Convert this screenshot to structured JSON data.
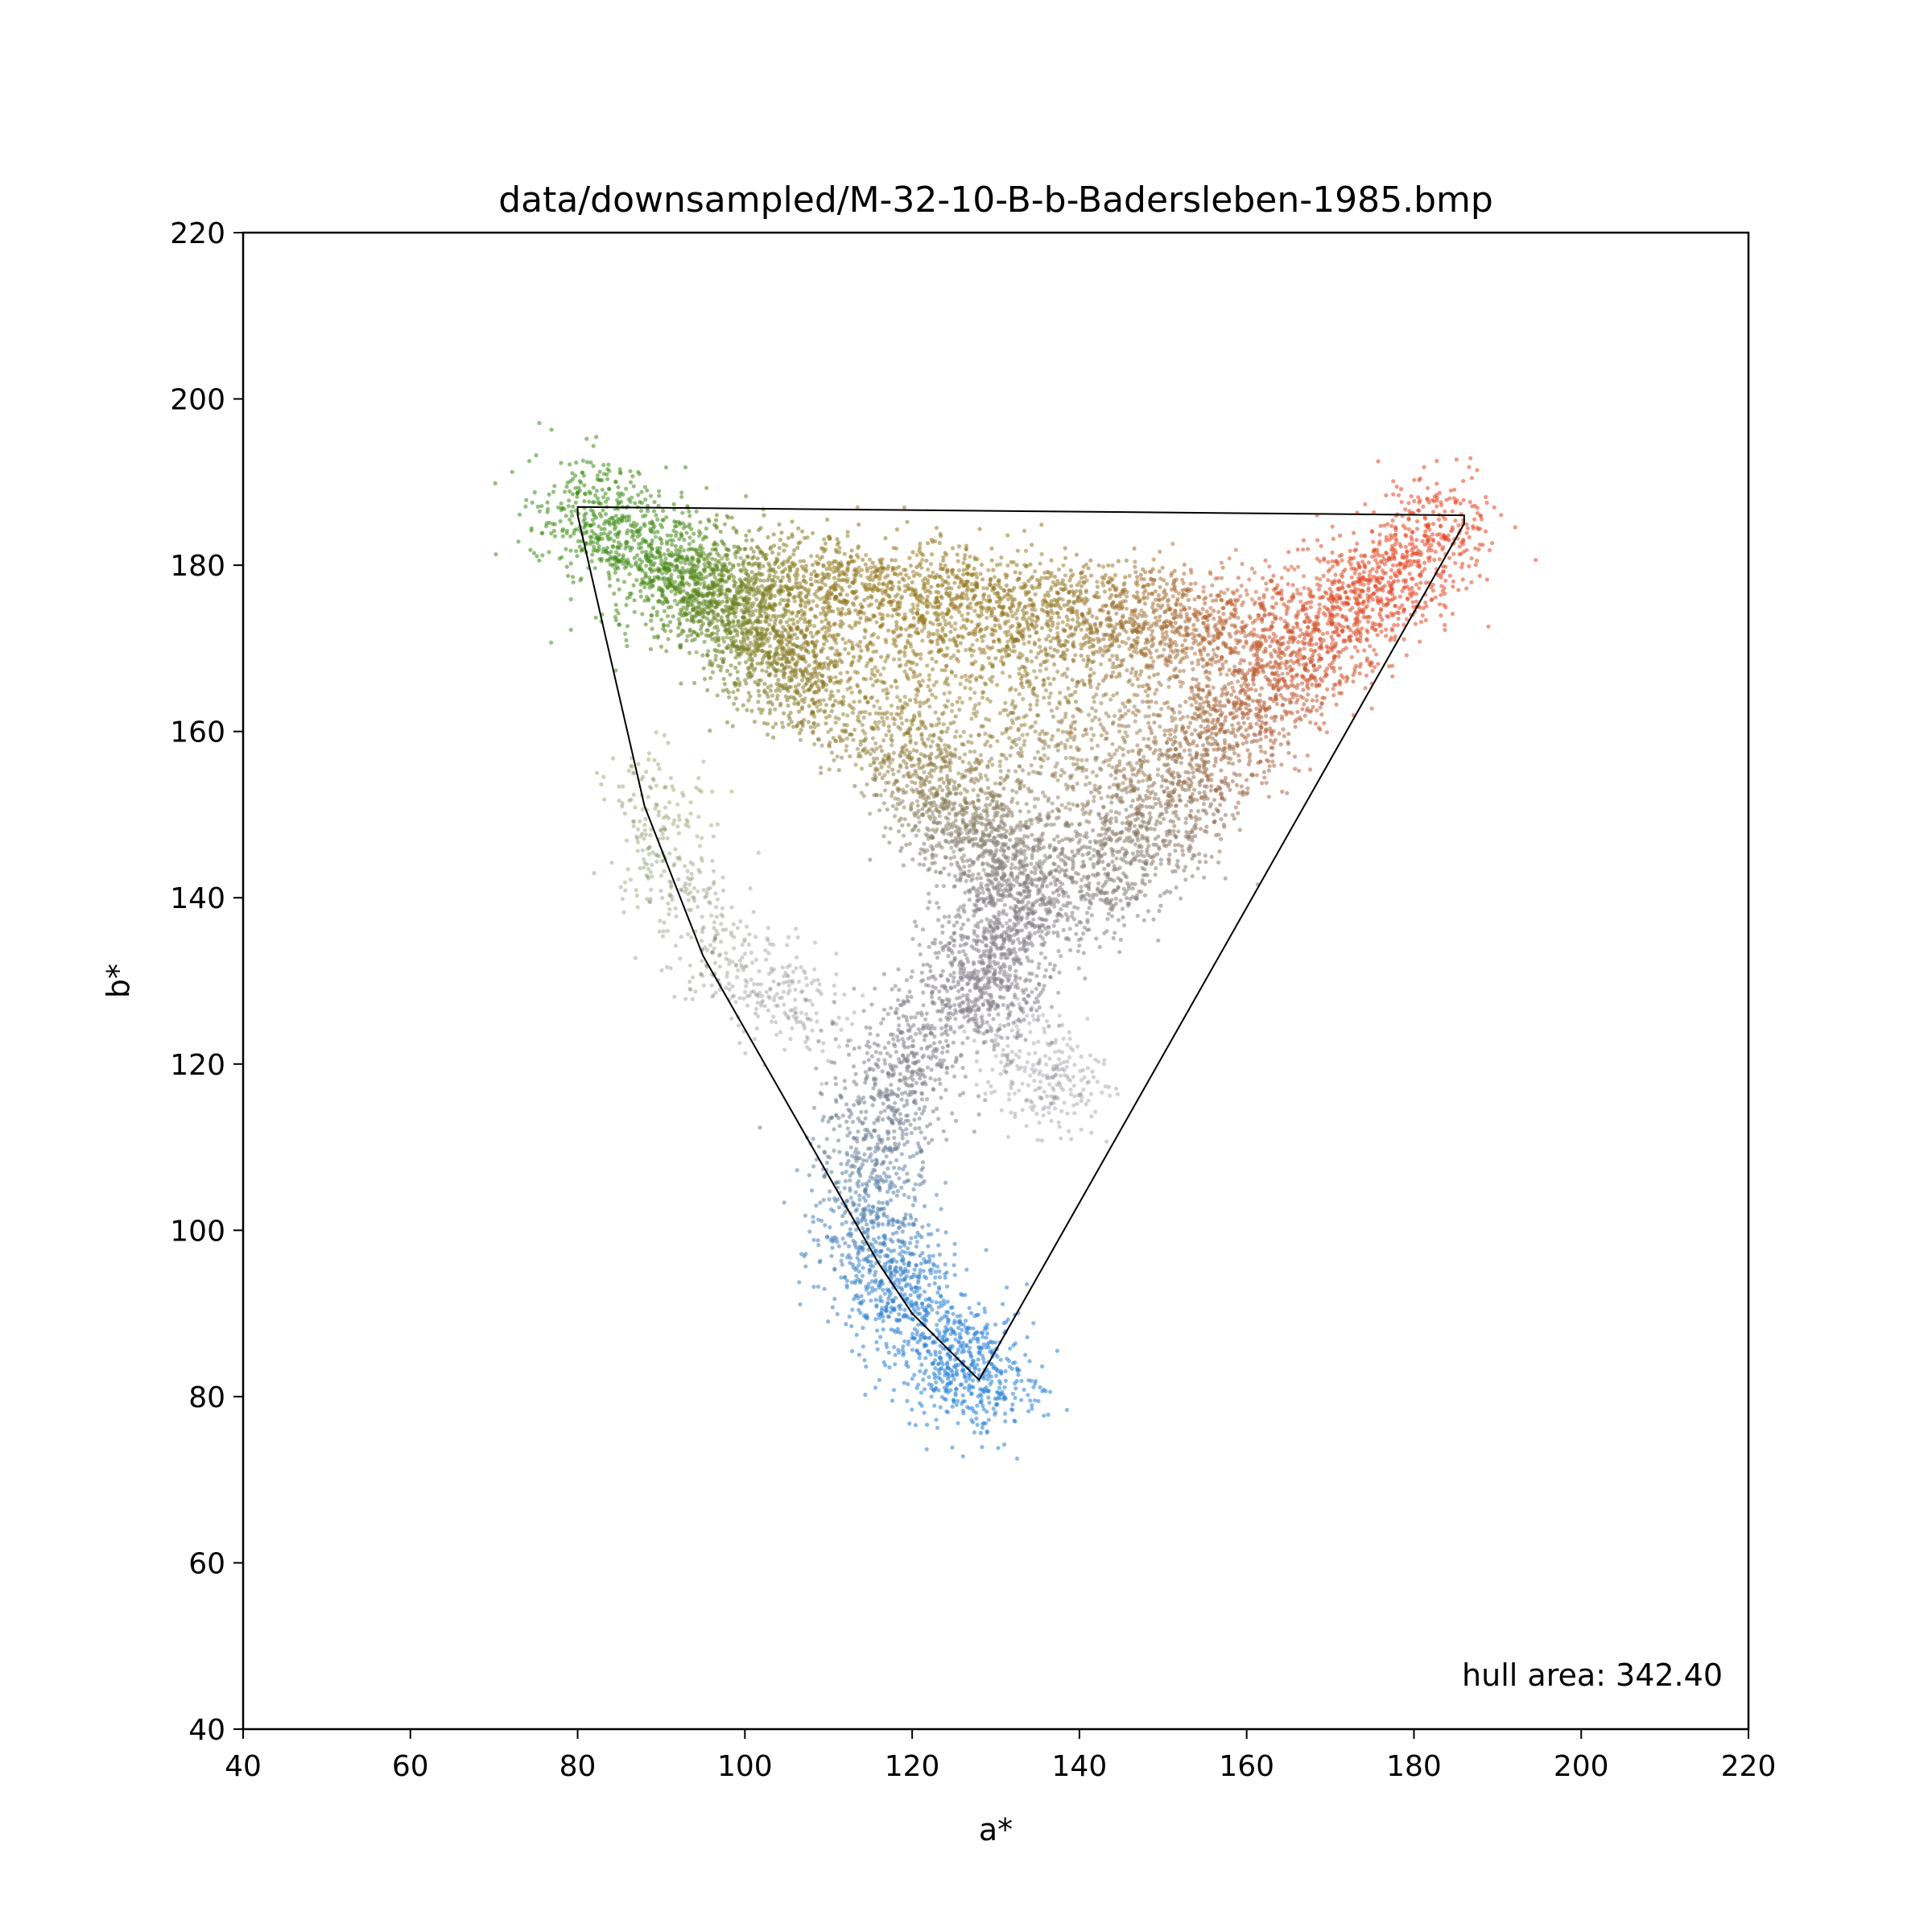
{
  "chart_data": {
    "type": "scatter",
    "title": "data/downsampled/M-32-10-B-b-Badersleben-1985.bmp",
    "xlabel": "a*",
    "ylabel": "b*",
    "xlim": [
      40,
      220
    ],
    "ylim": [
      40,
      220
    ],
    "xticks": [
      40,
      60,
      80,
      100,
      120,
      140,
      160,
      180,
      200,
      220
    ],
    "yticks": [
      40,
      60,
      80,
      100,
      120,
      140,
      160,
      180,
      200,
      220
    ],
    "grid": false,
    "annotation": "hull area: 342.40",
    "point_color_note": "each point colored by its own color (green top-left, red top-right, blue bottom, gray center)",
    "density_regions": [
      {
        "name": "green arm",
        "points": [
          [
            80,
            187
          ],
          [
            84,
            185
          ],
          [
            90,
            180
          ],
          [
            95,
            176
          ],
          [
            100,
            172
          ],
          [
            105,
            168
          ],
          [
            108,
            165
          ]
        ]
      },
      {
        "name": "top band",
        "points": [
          [
            90,
            180
          ],
          [
            100,
            178
          ],
          [
            110,
            177
          ],
          [
            120,
            176
          ],
          [
            130,
            175
          ],
          [
            140,
            174
          ],
          [
            150,
            173
          ],
          [
            160,
            172
          ]
        ]
      },
      {
        "name": "red arm",
        "points": [
          [
            185,
            185
          ],
          [
            180,
            181
          ],
          [
            175,
            177
          ],
          [
            170,
            172
          ],
          [
            165,
            167
          ],
          [
            160,
            162
          ],
          [
            155,
            156
          ],
          [
            150,
            150
          ],
          [
            145,
            144
          ],
          [
            140,
            140
          ]
        ]
      },
      {
        "name": "center",
        "points": [
          [
            120,
            160
          ],
          [
            125,
            150
          ],
          [
            130,
            145
          ],
          [
            135,
            140
          ],
          [
            128,
            135
          ],
          [
            130,
            128
          ],
          [
            125,
            130
          ]
        ]
      },
      {
        "name": "blue tail",
        "points": [
          [
            122,
            125
          ],
          [
            118,
            118
          ],
          [
            115,
            110
          ],
          [
            115,
            100
          ],
          [
            117,
            94
          ],
          [
            121,
            88
          ],
          [
            127,
            83
          ],
          [
            129,
            81
          ]
        ]
      },
      {
        "name": "gray branch",
        "points": [
          [
            131,
            123
          ],
          [
            134,
            120
          ],
          [
            137,
            118
          ],
          [
            139,
            117
          ]
        ]
      },
      {
        "name": "sparse green tail",
        "points": [
          [
            88,
            155
          ],
          [
            90,
            148
          ],
          [
            92,
            142
          ],
          [
            96,
            135
          ],
          [
            100,
            130
          ],
          [
            105,
            128
          ],
          [
            108,
            125
          ]
        ]
      }
    ],
    "hull": [
      [
        80,
        187
      ],
      [
        186,
        186
      ],
      [
        186,
        185
      ],
      [
        128,
        82
      ],
      [
        120,
        90
      ],
      [
        116,
        96
      ],
      [
        95,
        133
      ],
      [
        88,
        151
      ],
      [
        80,
        186
      ]
    ]
  }
}
